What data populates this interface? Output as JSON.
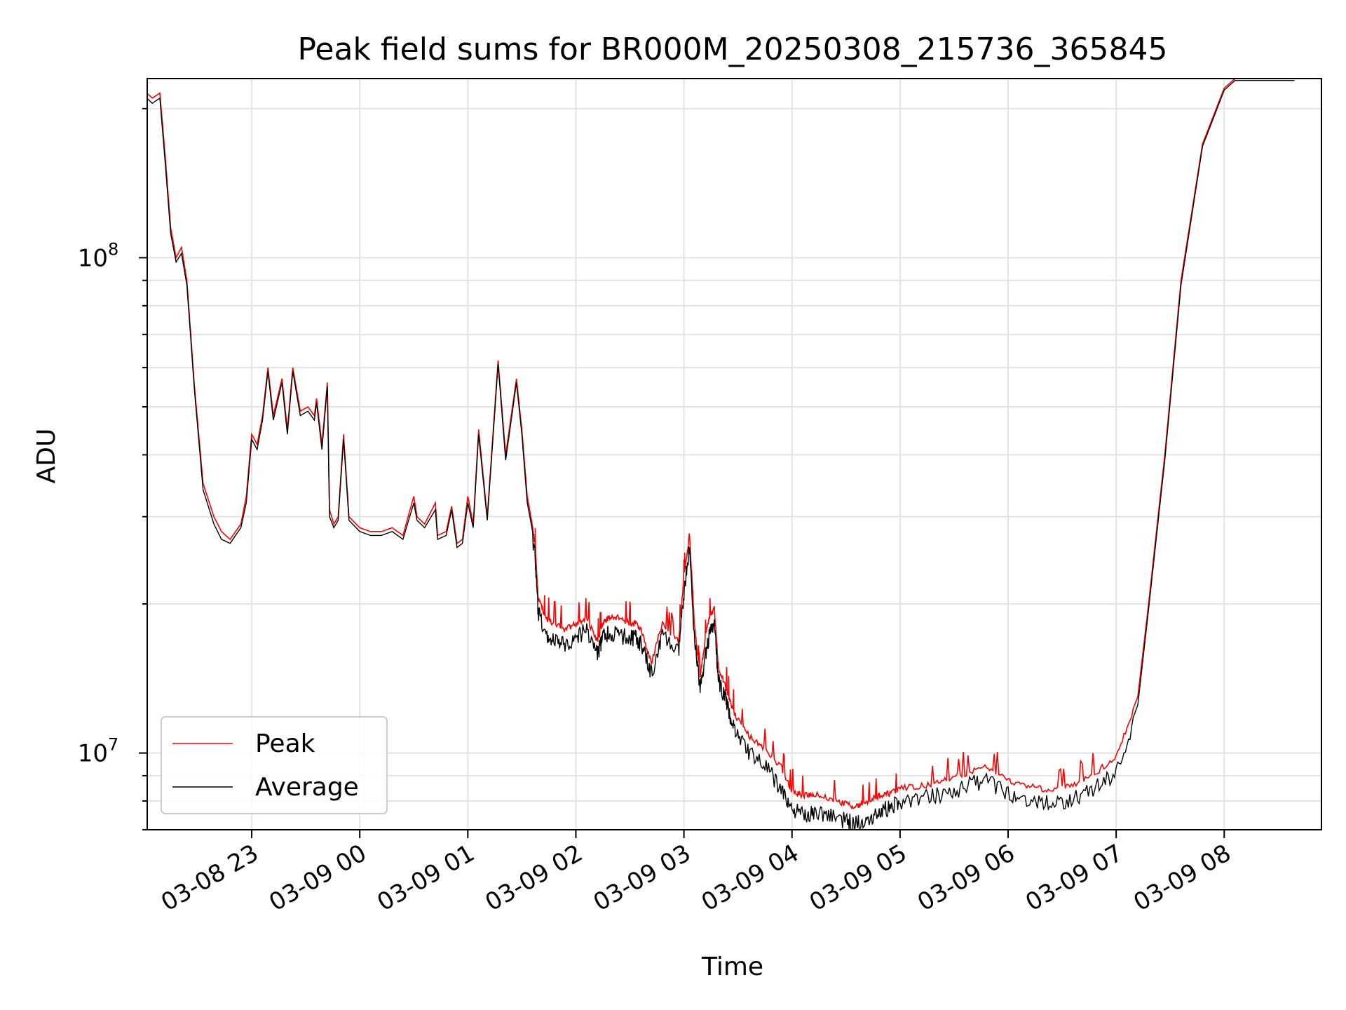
{
  "chart_data": {
    "type": "line",
    "title": "Peak field sums for BR000M_20250308_215736_365845",
    "xlabel": "Time",
    "ylabel": "ADU",
    "x_ticks": [
      "03-08 23",
      "03-09 00",
      "03-09 01",
      "03-09 02",
      "03-09 03",
      "03-09 04",
      "03-09 05",
      "03-09 06",
      "03-09 07",
      "03-09 08"
    ],
    "x_tick_hours": [
      1,
      2,
      3,
      4,
      5,
      6,
      7,
      8,
      9,
      10
    ],
    "xlim_hours": [
      0.033,
      10.9
    ],
    "x_units": "hours since 03-08 22:00",
    "y_scale": "log",
    "ylim": [
      7000000,
      230000000
    ],
    "y_major_ticks": [
      {
        "value": 10000000,
        "base": "10",
        "exp": "7"
      },
      {
        "value": 100000000,
        "base": "10",
        "exp": "8"
      }
    ],
    "grid": true,
    "legend": {
      "position": "lower-left",
      "entries": [
        "Peak",
        "Average"
      ]
    },
    "series": [
      {
        "name": "Peak",
        "color": "#ff0000",
        "x": [
          0.03,
          0.08,
          0.15,
          0.2,
          0.25,
          0.3,
          0.35,
          0.4,
          0.47,
          0.55,
          0.65,
          0.72,
          0.8,
          0.85,
          0.9,
          0.95,
          1.0,
          1.05,
          1.1,
          1.15,
          1.2,
          1.28,
          1.33,
          1.38,
          1.45,
          1.52,
          1.58,
          1.6,
          1.65,
          1.7,
          1.72,
          1.76,
          1.8,
          1.85,
          1.9,
          2.0,
          2.1,
          2.2,
          2.3,
          2.4,
          2.5,
          2.53,
          2.6,
          2.7,
          2.72,
          2.8,
          2.85,
          2.9,
          2.95,
          3.0,
          3.05,
          3.1,
          3.18,
          3.25,
          3.28,
          3.35,
          3.45,
          3.5,
          3.55,
          3.62,
          3.65,
          3.72,
          3.8,
          3.9,
          4.0,
          4.1,
          4.2,
          4.25,
          4.3,
          4.4,
          4.5,
          4.55,
          4.6,
          4.7,
          4.8,
          4.95,
          5.0,
          5.05,
          5.1,
          5.15,
          5.22,
          5.28,
          5.32,
          5.38,
          5.42,
          5.48,
          5.6,
          5.75,
          5.9,
          6.0,
          6.1,
          6.2,
          6.35,
          6.5,
          6.6,
          6.7,
          6.8,
          6.9,
          7.0,
          7.2,
          7.4,
          7.6,
          7.8,
          8.0,
          8.2,
          8.4,
          8.6,
          8.8,
          9.0,
          9.2,
          9.3,
          9.45,
          9.6,
          9.8,
          10.0,
          10.1,
          10.2,
          10.3,
          10.4,
          10.5,
          10.6,
          10.65
        ],
        "y": [
          215000000,
          210000000,
          215000000,
          160000000,
          115000000,
          100000000,
          105000000,
          90000000,
          55000000,
          35000000,
          30000000,
          28000000,
          27000000,
          28000000,
          29000000,
          33000000,
          44000000,
          42000000,
          48000000,
          60000000,
          48000000,
          57000000,
          45000000,
          60000000,
          49000000,
          50000000,
          48000000,
          52000000,
          42000000,
          56000000,
          31000000,
          29000000,
          30000000,
          44000000,
          30000000,
          28500000,
          28000000,
          28000000,
          28500000,
          27500000,
          33000000,
          30000000,
          29000000,
          32000000,
          27500000,
          28000000,
          31500000,
          26500000,
          27000000,
          33000000,
          29000000,
          45000000,
          30000000,
          50000000,
          62000000,
          40000000,
          57000000,
          45000000,
          33000000,
          27000000,
          21000000,
          19000000,
          18500000,
          18000000,
          18500000,
          19000000,
          17000000,
          18500000,
          19000000,
          19000000,
          18500000,
          18500000,
          18000000,
          15500000,
          18500000,
          17000000,
          23000000,
          28000000,
          18000000,
          14500000,
          18500000,
          20000000,
          15000000,
          14000000,
          13000000,
          12000000,
          11000000,
          10300000,
          9500000,
          8500000,
          8300000,
          8400000,
          8200000,
          8000000,
          7900000,
          8100000,
          8300000,
          8400000,
          8600000,
          8700000,
          8900000,
          9200000,
          9500000,
          8900000,
          8700000,
          8500000,
          8700000,
          9200000,
          10000000,
          13000000,
          20000000,
          40000000,
          90000000,
          170000000,
          220000000,
          230000000,
          230000000,
          230000000,
          230000000,
          230000000,
          230000000,
          230000000
        ]
      },
      {
        "name": "Average",
        "color": "#000000",
        "x": [
          0.03,
          0.08,
          0.15,
          0.2,
          0.25,
          0.3,
          0.35,
          0.4,
          0.47,
          0.55,
          0.65,
          0.72,
          0.8,
          0.85,
          0.9,
          0.95,
          1.0,
          1.05,
          1.1,
          1.15,
          1.2,
          1.28,
          1.33,
          1.38,
          1.45,
          1.52,
          1.58,
          1.6,
          1.65,
          1.7,
          1.72,
          1.76,
          1.8,
          1.85,
          1.9,
          2.0,
          2.1,
          2.2,
          2.3,
          2.4,
          2.5,
          2.53,
          2.6,
          2.7,
          2.72,
          2.8,
          2.85,
          2.9,
          2.95,
          3.0,
          3.05,
          3.1,
          3.18,
          3.25,
          3.28,
          3.35,
          3.45,
          3.5,
          3.55,
          3.62,
          3.65,
          3.72,
          3.8,
          3.9,
          4.0,
          4.1,
          4.2,
          4.25,
          4.3,
          4.4,
          4.5,
          4.55,
          4.6,
          4.7,
          4.8,
          4.95,
          5.0,
          5.05,
          5.1,
          5.15,
          5.22,
          5.28,
          5.32,
          5.38,
          5.42,
          5.48,
          5.6,
          5.75,
          5.9,
          6.0,
          6.1,
          6.2,
          6.35,
          6.5,
          6.6,
          6.7,
          6.8,
          6.9,
          7.0,
          7.2,
          7.4,
          7.6,
          7.8,
          8.0,
          8.2,
          8.4,
          8.6,
          8.8,
          9.0,
          9.2,
          9.3,
          9.45,
          9.6,
          9.8,
          10.0,
          10.1,
          10.2,
          10.3,
          10.4,
          10.5,
          10.6,
          10.65
        ],
        "y": [
          210000000,
          205000000,
          210000000,
          155000000,
          112000000,
          98000000,
          102000000,
          88000000,
          54000000,
          34000000,
          29000000,
          27000000,
          26500000,
          27500000,
          28500000,
          32000000,
          43000000,
          41000000,
          47000000,
          59000000,
          47000000,
          56000000,
          44000000,
          59000000,
          48000000,
          49000000,
          47000000,
          51000000,
          41000000,
          55000000,
          30000000,
          28500000,
          29500000,
          43000000,
          29500000,
          28000000,
          27500000,
          27500000,
          28000000,
          27000000,
          32000000,
          29500000,
          28500000,
          31000000,
          27000000,
          27500000,
          31000000,
          26000000,
          26500000,
          32000000,
          28500000,
          44000000,
          29500000,
          49000000,
          61000000,
          39000000,
          56000000,
          44000000,
          32000000,
          26500000,
          20000000,
          18000000,
          17500000,
          17200000,
          17800000,
          18500000,
          16500000,
          17800000,
          18200000,
          18000000,
          17800000,
          17800000,
          17300000,
          15000000,
          18000000,
          16500000,
          22000000,
          27000000,
          17500000,
          14000000,
          17500000,
          19000000,
          14500000,
          13500000,
          12500000,
          11500000,
          10500000,
          9800000,
          8800000,
          8000000,
          7800000,
          7900000,
          7800000,
          7600000,
          7500000,
          7700000,
          7900000,
          8100000,
          8300000,
          8400000,
          8600000,
          8900000,
          9200000,
          8600000,
          8400000,
          8200000,
          8400000,
          8800000,
          9500000,
          12500000,
          19500000,
          39000000,
          88000000,
          168000000,
          218000000,
          228000000,
          228000000,
          228000000,
          228000000,
          228000000,
          228000000,
          228000000
        ]
      }
    ]
  }
}
